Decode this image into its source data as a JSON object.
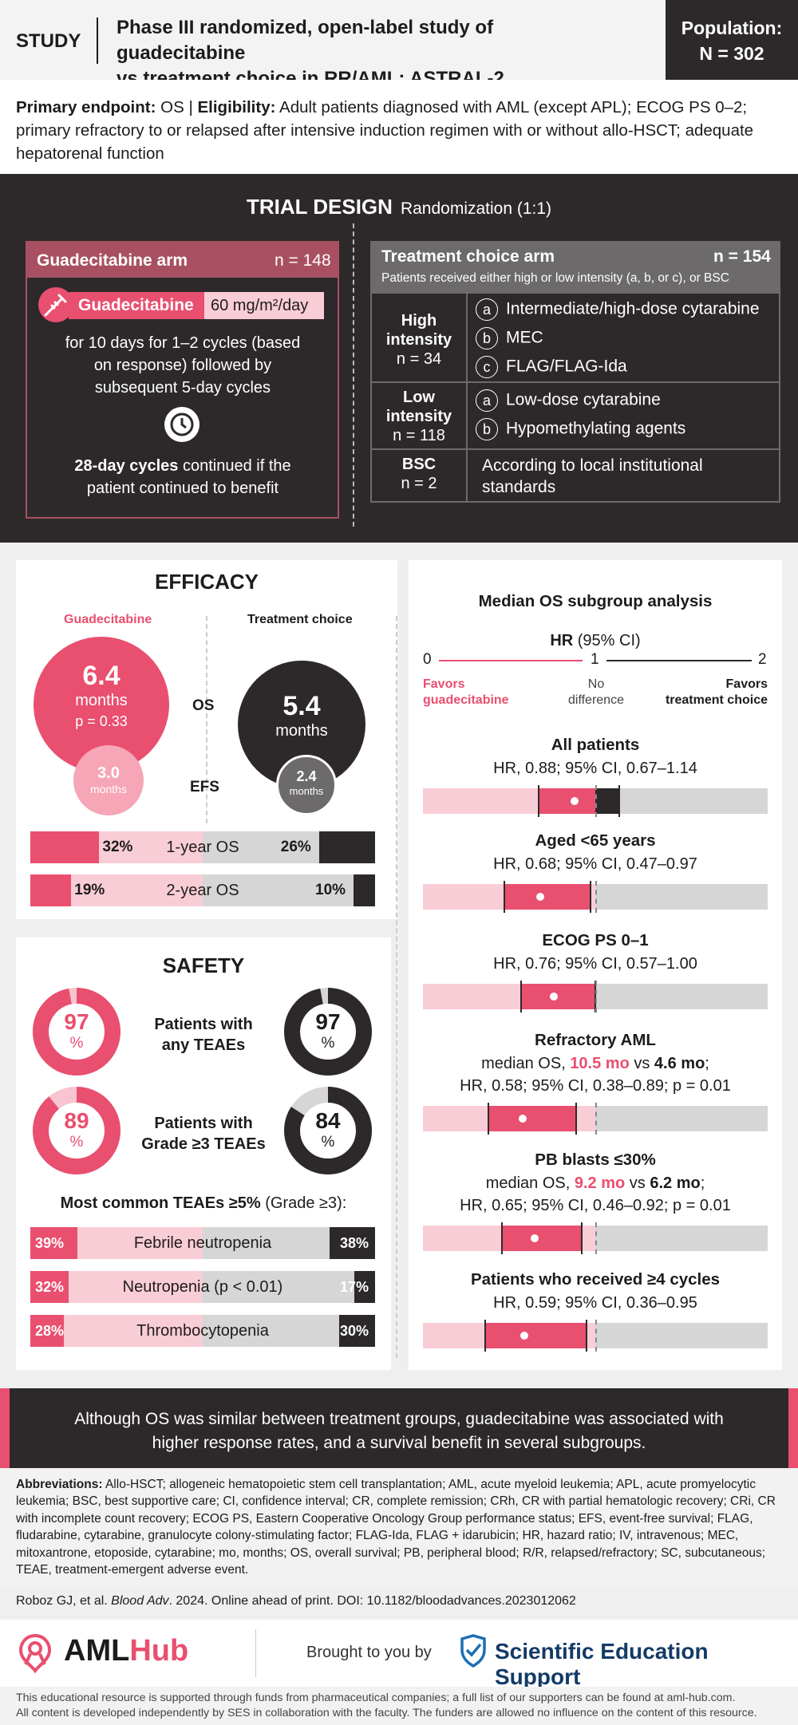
{
  "header": {
    "study_label": "STUDY",
    "title_line1": "Phase III randomized, open-label study of guadecitabine",
    "title_line2": "vs treatment choice in RR/AML: ASTRAL-2",
    "population_label": "Population:",
    "population_value": "N = 302"
  },
  "primary": {
    "endpoint_label": "Primary endpoint:",
    "endpoint_value": "OS",
    "eligibility_label": "Eligibility:",
    "eligibility_text": "Adult patients diagnosed with AML (except APL); ECOG PS 0–2; primary refractory to or relapsed after intensive induction regimen with or without allo-HSCT; adequate hepatorenal function"
  },
  "trial_design": {
    "title": "TRIAL DESIGN",
    "randomization": "Randomization (1:1)",
    "guadecitabine_arm": {
      "name": "Guadecitabine arm",
      "n": "n = 148",
      "drug": "Guadecitabine",
      "dose": "60 mg/m²/day",
      "schedule": "for 10 days for 1–2 cycles (based on response) followed by subsequent 5-day cycles",
      "cycles_bold": "28-day cycles",
      "cycles_rest": "continued if the patient continued to benefit"
    },
    "treatment_choice_arm": {
      "name": "Treatment choice arm",
      "n": "n = 154",
      "note": "Patients received either high or low intensity (a, b, or c), or BSC",
      "high": {
        "label1": "High",
        "label2": "intensity",
        "n": "n = 34",
        "options": [
          {
            "letter": "a",
            "text": "Intermediate/high-dose cytarabine"
          },
          {
            "letter": "b",
            "text": "MEC"
          },
          {
            "letter": "c",
            "text": "FLAG/FLAG-Ida"
          }
        ]
      },
      "low": {
        "label1": "Low",
        "label2": "intensity",
        "n": "n = 118",
        "options": [
          {
            "letter": "a",
            "text": "Low-dose cytarabine"
          },
          {
            "letter": "b",
            "text": "Hypomethylating agents"
          }
        ]
      },
      "bsc": {
        "label": "BSC",
        "n": "n = 2",
        "text_line1": "According to local institutional",
        "text_line2": "standards"
      }
    }
  },
  "efficacy": {
    "title": "EFFICACY",
    "guad_label": "Guadecitabine",
    "tc_label": "Treatment choice",
    "os_label": "OS",
    "efs_label": "EFS",
    "guad_os": "6.4",
    "guad_os_unit": "months",
    "guad_p": "p = 0.33",
    "guad_efs": "3.0",
    "guad_efs_unit": "months",
    "tc_os": "5.4",
    "tc_os_unit": "months",
    "tc_efs": "2.4",
    "tc_efs_unit": "months",
    "bars": [
      {
        "label": "1-year OS",
        "guad": "32%",
        "tc": "26%",
        "guad_value": 0.32,
        "tc_value": 0.26
      },
      {
        "label": "2-year OS",
        "guad": "19%",
        "tc": "10%",
        "guad_value": 0.19,
        "tc_value": 0.1
      }
    ]
  },
  "safety": {
    "title": "SAFETY",
    "donuts": [
      {
        "label_line1": "Patients with",
        "label_line2": "any TEAEs",
        "guad": "97",
        "tc": "97",
        "guad_value": 97,
        "tc_value": 97
      },
      {
        "label_line1": "Patients with",
        "label_line2": "Grade ≥3 TEAEs",
        "guad": "89",
        "tc": "84",
        "guad_value": 89,
        "tc_value": 84
      }
    ],
    "percent_sign": "%",
    "common_title": "Most common TEAEs ≥5%",
    "common_grade": "(Grade ≥3):",
    "teaes": [
      {
        "label": "Febrile neutropenia",
        "guad": "39%",
        "tc": "38%",
        "guad_value": 0.39,
        "tc_value": 0.38
      },
      {
        "label": "Neutropenia (p < 0.01)",
        "guad": "32%",
        "tc": "17%",
        "guad_value": 0.32,
        "tc_value": 0.17
      },
      {
        "label": "Thrombocytopenia",
        "guad": "28%",
        "tc": "30%",
        "guad_value": 0.28,
        "tc_value": 0.3
      }
    ]
  },
  "subgroup": {
    "title": "Median OS subgroup analysis",
    "hr_label": "HR",
    "hr_ci": "(95% CI)",
    "axis": {
      "min": "0",
      "mid": "1",
      "max": "2",
      "favors_left1": "Favors",
      "favors_left2": "guadecitabine",
      "no_diff1": "No",
      "no_diff2": "difference",
      "favors_right1": "Favors",
      "favors_right2": "treatment choice"
    },
    "groups": [
      {
        "name": "All patients",
        "line1": "HR, 0.88; 95% CI, 0.67–1.14",
        "hr": 0.88,
        "lo": 0.67,
        "hi": 1.14
      },
      {
        "name": "Aged <65 years",
        "line1": "HR, 0.68; 95% CI, 0.47–0.97",
        "hr": 0.68,
        "lo": 0.47,
        "hi": 0.97
      },
      {
        "name": "ECOG PS 0–1",
        "line1": "HR, 0.76; 95% CI, 0.57–1.00",
        "hr": 0.76,
        "lo": 0.57,
        "hi": 1.0
      },
      {
        "name": "Refractory AML",
        "pre": "median OS,",
        "val_pink": "10.5 mo",
        "vs": "vs",
        "val_bold": "4.6 mo",
        "line2": "HR, 0.58; 95% CI, 0.38–0.89; p = 0.01",
        "hr": 0.58,
        "lo": 0.38,
        "hi": 0.89
      },
      {
        "name": "PB blasts ≤30%",
        "pre": "median OS,",
        "val_pink": "9.2 mo",
        "vs": "vs",
        "val_bold": "6.2 mo",
        "line2": "HR, 0.65; 95% CI, 0.46–0.92; p = 0.01",
        "hr": 0.65,
        "lo": 0.46,
        "hi": 0.92
      },
      {
        "name": "Patients who received ≥4 cycles",
        "line1": "HR, 0.59; 95% CI, 0.36–0.95",
        "hr": 0.59,
        "lo": 0.36,
        "hi": 0.95
      }
    ]
  },
  "conclusion": "Although OS was similar between treatment groups, guadecitabine was associated with higher response rates, and a survival benefit in several subgroups.",
  "abbreviations": {
    "label": "Abbreviations:",
    "text": "Allo-HSCT; allogeneic hematopoietic stem cell transplantation; AML, acute myeloid leukemia; APL, acute promyelocytic leukemia; BSC, best supportive care; CI, confidence interval; CR, complete remission; CRh, CR with partial hematologic recovery; CRi, CR with incomplete count recovery; ECOG PS, Eastern Cooperative Oncology Group performance status; EFS, event-free survival; FLAG, fludarabine, cytarabine, granulocyte colony-stimulating factor; FLAG-Ida, FLAG + idarubicin; HR, hazard ratio; IV, intravenous; MEC, mitoxantrone, etoposide, cytarabine; mo, months; OS, overall survival; PB, peripheral blood; R/R, relapsed/refractory; SC, subcutaneous; TEAE, treatment-emergent adverse event."
  },
  "citation": {
    "authors": "Roboz GJ, et al.",
    "journal": "Blood Adv",
    "rest": ". 2024. Online ahead of print. DOI: 10.1182/bloodadvances.2023012062"
  },
  "logos": {
    "aml": "AML",
    "hub": "Hub",
    "brought": "Brought to you by",
    "ses": "Scientific Education Support"
  },
  "footer": {
    "line1": "This educational resource is supported through funds from pharmaceutical companies; a full list of our supporters can be found at aml-hub.com.",
    "line2": "All content is developed independently by SES in collaboration with the faculty. The funders are allowed no influence on the content of this resource."
  },
  "colors": {
    "pink": "#e94f6f",
    "light_pink": "#f9cdd6",
    "dark": "#2d292a",
    "grey": "#6d6a6b",
    "light_grey": "#d6d6d6",
    "blue": "#1c6fb5"
  }
}
